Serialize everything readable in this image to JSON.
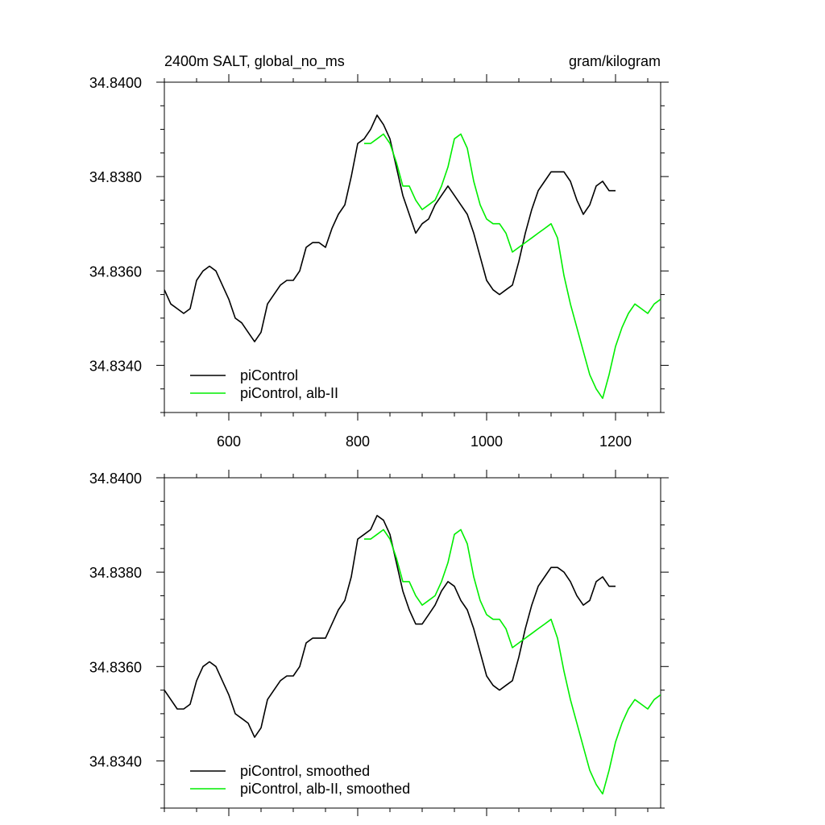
{
  "chart_data": [
    {
      "type": "line",
      "title": "2400m SALT, global_no_ms",
      "units": "gram/kilogram",
      "xlabel": "",
      "ylabel": "",
      "xlim": [
        500,
        1270
      ],
      "ylim": [
        34.833,
        34.84
      ],
      "x_ticks": [
        600,
        800,
        1000,
        1200
      ],
      "x_tick_labels": [
        "600",
        "800",
        "1000",
        "1200"
      ],
      "y_ticks": [
        34.834,
        34.836,
        34.838,
        34.84
      ],
      "y_tick_labels": [
        "34.8340",
        "34.8360",
        "34.8380",
        "34.8400"
      ],
      "legend_position": "bottom-left",
      "grid": false,
      "series": [
        {
          "name": "piControl",
          "color": "#000000",
          "points": [
            [
              500,
              34.8356
            ],
            [
              510,
              34.8353
            ],
            [
              520,
              34.8352
            ],
            [
              530,
              34.8351
            ],
            [
              540,
              34.8352
            ],
            [
              550,
              34.8358
            ],
            [
              560,
              34.836
            ],
            [
              570,
              34.8361
            ],
            [
              580,
              34.836
            ],
            [
              590,
              34.8357
            ],
            [
              600,
              34.8354
            ],
            [
              610,
              34.835
            ],
            [
              620,
              34.8349
            ],
            [
              630,
              34.8347
            ],
            [
              640,
              34.8345
            ],
            [
              650,
              34.8347
            ],
            [
              660,
              34.8353
            ],
            [
              670,
              34.8355
            ],
            [
              680,
              34.8357
            ],
            [
              690,
              34.8358
            ],
            [
              700,
              34.8358
            ],
            [
              710,
              34.836
            ],
            [
              720,
              34.8365
            ],
            [
              730,
              34.8366
            ],
            [
              740,
              34.8366
            ],
            [
              750,
              34.8365
            ],
            [
              760,
              34.8369
            ],
            [
              770,
              34.8372
            ],
            [
              780,
              34.8374
            ],
            [
              790,
              34.838
            ],
            [
              800,
              34.8387
            ],
            [
              810,
              34.8388
            ],
            [
              820,
              34.839
            ],
            [
              830,
              34.8393
            ],
            [
              840,
              34.8391
            ],
            [
              850,
              34.8388
            ],
            [
              860,
              34.8382
            ],
            [
              870,
              34.8376
            ],
            [
              880,
              34.8372
            ],
            [
              890,
              34.8368
            ],
            [
              900,
              34.837
            ],
            [
              910,
              34.8371
            ],
            [
              920,
              34.8374
            ],
            [
              930,
              34.8376
            ],
            [
              940,
              34.8378
            ],
            [
              950,
              34.8376
            ],
            [
              960,
              34.8374
            ],
            [
              970,
              34.8372
            ],
            [
              980,
              34.8368
            ],
            [
              990,
              34.8363
            ],
            [
              1000,
              34.8358
            ],
            [
              1010,
              34.8356
            ],
            [
              1020,
              34.8355
            ],
            [
              1030,
              34.8356
            ],
            [
              1040,
              34.8357
            ],
            [
              1050,
              34.8362
            ],
            [
              1060,
              34.8368
            ],
            [
              1070,
              34.8373
            ],
            [
              1080,
              34.8377
            ],
            [
              1090,
              34.8379
            ],
            [
              1100,
              34.8381
            ],
            [
              1110,
              34.8381
            ],
            [
              1120,
              34.8381
            ],
            [
              1130,
              34.8379
            ],
            [
              1140,
              34.8375
            ],
            [
              1150,
              34.8372
            ],
            [
              1160,
              34.8374
            ],
            [
              1170,
              34.8378
            ],
            [
              1180,
              34.8379
            ],
            [
              1190,
              34.8377
            ],
            [
              1200,
              34.8377
            ]
          ]
        },
        {
          "name": "piControl, alb-II",
          "color": "#00ee00",
          "points": [
            [
              810,
              34.8387
            ],
            [
              820,
              34.8387
            ],
            [
              830,
              34.8388
            ],
            [
              840,
              34.8389
            ],
            [
              850,
              34.8387
            ],
            [
              860,
              34.8383
            ],
            [
              870,
              34.8378
            ],
            [
              880,
              34.8378
            ],
            [
              890,
              34.8375
            ],
            [
              900,
              34.8373
            ],
            [
              910,
              34.8374
            ],
            [
              920,
              34.8375
            ],
            [
              930,
              34.8378
            ],
            [
              940,
              34.8382
            ],
            [
              950,
              34.8388
            ],
            [
              960,
              34.8389
            ],
            [
              970,
              34.8386
            ],
            [
              980,
              34.8379
            ],
            [
              990,
              34.8374
            ],
            [
              1000,
              34.8371
            ],
            [
              1010,
              34.837
            ],
            [
              1020,
              34.837
            ],
            [
              1030,
              34.8368
            ],
            [
              1040,
              34.8364
            ],
            [
              1050,
              34.8365
            ],
            [
              1060,
              34.8366
            ],
            [
              1070,
              34.8367
            ],
            [
              1080,
              34.8368
            ],
            [
              1090,
              34.8369
            ],
            [
              1100,
              34.837
            ],
            [
              1110,
              34.8367
            ],
            [
              1120,
              34.8359
            ],
            [
              1130,
              34.8353
            ],
            [
              1140,
              34.8348
            ],
            [
              1150,
              34.8343
            ],
            [
              1160,
              34.8338
            ],
            [
              1170,
              34.8335
            ],
            [
              1180,
              34.8333
            ],
            [
              1190,
              34.8338
            ],
            [
              1200,
              34.8344
            ],
            [
              1210,
              34.8348
            ],
            [
              1220,
              34.8351
            ],
            [
              1230,
              34.8353
            ],
            [
              1240,
              34.8352
            ],
            [
              1250,
              34.8351
            ],
            [
              1260,
              34.8353
            ],
            [
              1270,
              34.8354
            ]
          ]
        }
      ]
    },
    {
      "type": "line",
      "title": "",
      "xlabel": "",
      "ylabel": "",
      "xlim": [
        500,
        1270
      ],
      "ylim": [
        34.833,
        34.84
      ],
      "x_ticks": [
        600,
        800,
        1000,
        1200
      ],
      "x_tick_labels": [],
      "y_ticks": [
        34.834,
        34.836,
        34.838,
        34.84
      ],
      "y_tick_labels": [
        "34.8340",
        "34.8360",
        "34.8380",
        "34.8400"
      ],
      "legend_position": "bottom-left",
      "grid": false,
      "series": [
        {
          "name": "piControl, smoothed",
          "color": "#000000",
          "points": [
            [
              500,
              34.8355
            ],
            [
              510,
              34.8353
            ],
            [
              520,
              34.8351
            ],
            [
              530,
              34.8351
            ],
            [
              540,
              34.8352
            ],
            [
              550,
              34.8357
            ],
            [
              560,
              34.836
            ],
            [
              570,
              34.8361
            ],
            [
              580,
              34.836
            ],
            [
              590,
              34.8357
            ],
            [
              600,
              34.8354
            ],
            [
              610,
              34.835
            ],
            [
              620,
              34.8349
            ],
            [
              630,
              34.8348
            ],
            [
              640,
              34.8345
            ],
            [
              650,
              34.8347
            ],
            [
              660,
              34.8353
            ],
            [
              670,
              34.8355
            ],
            [
              680,
              34.8357
            ],
            [
              690,
              34.8358
            ],
            [
              700,
              34.8358
            ],
            [
              710,
              34.836
            ],
            [
              720,
              34.8365
            ],
            [
              730,
              34.8366
            ],
            [
              740,
              34.8366
            ],
            [
              750,
              34.8366
            ],
            [
              760,
              34.8369
            ],
            [
              770,
              34.8372
            ],
            [
              780,
              34.8374
            ],
            [
              790,
              34.8379
            ],
            [
              800,
              34.8387
            ],
            [
              810,
              34.8388
            ],
            [
              820,
              34.8389
            ],
            [
              830,
              34.8392
            ],
            [
              840,
              34.8391
            ],
            [
              850,
              34.8388
            ],
            [
              860,
              34.8382
            ],
            [
              870,
              34.8376
            ],
            [
              880,
              34.8372
            ],
            [
              890,
              34.8369
            ],
            [
              900,
              34.8369
            ],
            [
              910,
              34.8371
            ],
            [
              920,
              34.8373
            ],
            [
              930,
              34.8376
            ],
            [
              940,
              34.8378
            ],
            [
              950,
              34.8377
            ],
            [
              960,
              34.8374
            ],
            [
              970,
              34.8372
            ],
            [
              980,
              34.8368
            ],
            [
              990,
              34.8363
            ],
            [
              1000,
              34.8358
            ],
            [
              1010,
              34.8356
            ],
            [
              1020,
              34.8355
            ],
            [
              1030,
              34.8356
            ],
            [
              1040,
              34.8357
            ],
            [
              1050,
              34.8362
            ],
            [
              1060,
              34.8368
            ],
            [
              1070,
              34.8373
            ],
            [
              1080,
              34.8377
            ],
            [
              1090,
              34.8379
            ],
            [
              1100,
              34.8381
            ],
            [
              1110,
              34.8381
            ],
            [
              1120,
              34.838
            ],
            [
              1130,
              34.8378
            ],
            [
              1140,
              34.8375
            ],
            [
              1150,
              34.8373
            ],
            [
              1160,
              34.8374
            ],
            [
              1170,
              34.8378
            ],
            [
              1180,
              34.8379
            ],
            [
              1190,
              34.8377
            ],
            [
              1200,
              34.8377
            ]
          ]
        },
        {
          "name": "piControl, alb-II, smoothed",
          "color": "#00ee00",
          "points": [
            [
              810,
              34.8387
            ],
            [
              820,
              34.8387
            ],
            [
              830,
              34.8388
            ],
            [
              840,
              34.8389
            ],
            [
              850,
              34.8387
            ],
            [
              860,
              34.8383
            ],
            [
              870,
              34.8378
            ],
            [
              880,
              34.8378
            ],
            [
              890,
              34.8375
            ],
            [
              900,
              34.8373
            ],
            [
              910,
              34.8374
            ],
            [
              920,
              34.8375
            ],
            [
              930,
              34.8378
            ],
            [
              940,
              34.8382
            ],
            [
              950,
              34.8388
            ],
            [
              960,
              34.8389
            ],
            [
              970,
              34.8386
            ],
            [
              980,
              34.8379
            ],
            [
              990,
              34.8374
            ],
            [
              1000,
              34.8371
            ],
            [
              1010,
              34.837
            ],
            [
              1020,
              34.837
            ],
            [
              1030,
              34.8368
            ],
            [
              1040,
              34.8364
            ],
            [
              1050,
              34.8365
            ],
            [
              1060,
              34.8366
            ],
            [
              1070,
              34.8367
            ],
            [
              1080,
              34.8368
            ],
            [
              1090,
              34.8369
            ],
            [
              1100,
              34.837
            ],
            [
              1110,
              34.8366
            ],
            [
              1120,
              34.8359
            ],
            [
              1130,
              34.8353
            ],
            [
              1140,
              34.8348
            ],
            [
              1150,
              34.8343
            ],
            [
              1160,
              34.8338
            ],
            [
              1170,
              34.8335
            ],
            [
              1180,
              34.8333
            ],
            [
              1190,
              34.8338
            ],
            [
              1200,
              34.8344
            ],
            [
              1210,
              34.8348
            ],
            [
              1220,
              34.8351
            ],
            [
              1230,
              34.8353
            ],
            [
              1240,
              34.8352
            ],
            [
              1250,
              34.8351
            ],
            [
              1260,
              34.8353
            ],
            [
              1270,
              34.8354
            ]
          ]
        }
      ]
    }
  ]
}
